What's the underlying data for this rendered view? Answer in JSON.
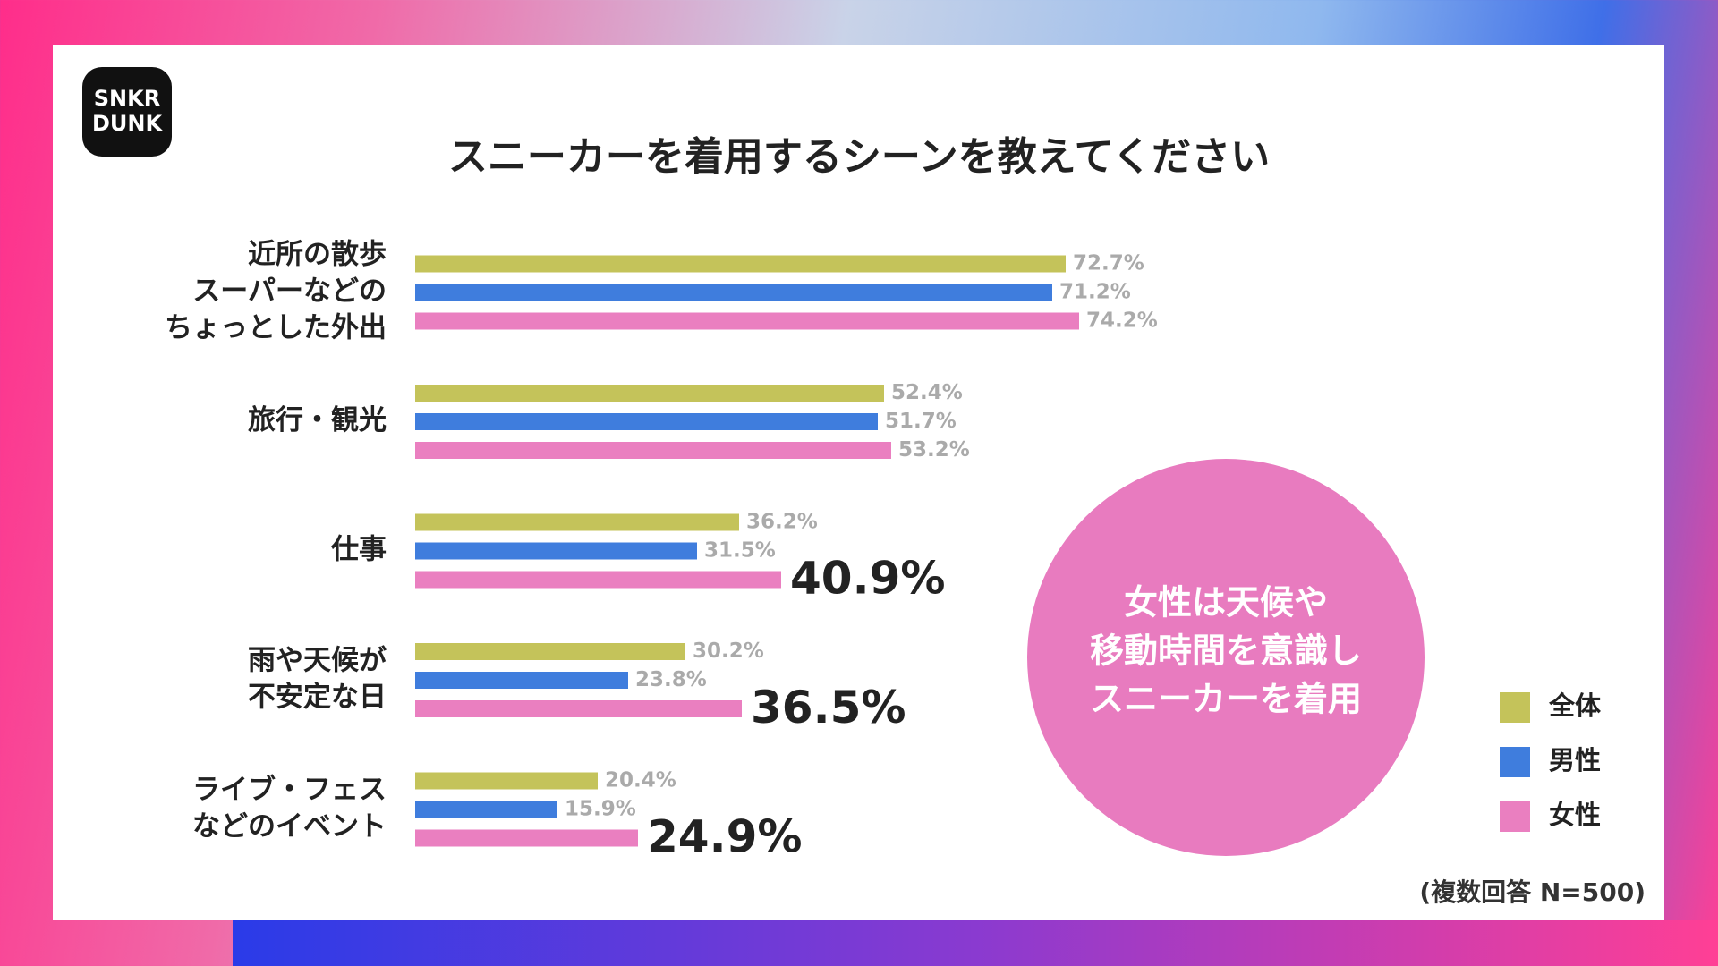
{
  "chart_data": {
    "type": "bar",
    "logo": [
      "SNKR",
      "DUNK"
    ],
    "title": "スニーカーを着用するシーンを教えてください",
    "categories": [
      [
        "近所の散歩",
        "スーパーなどの",
        "ちょっとした外出"
      ],
      [
        "旅行・観光"
      ],
      [
        "仕事"
      ],
      [
        "雨や天候が",
        "不安定な日"
      ],
      [
        "ライブ・フェス",
        "などのイベント"
      ]
    ],
    "series": [
      {
        "name": "全体",
        "color": "#c4c35a",
        "values": [
          72.7,
          52.4,
          36.2,
          30.2,
          20.4
        ],
        "value_labels": [
          "72.7%",
          "52.4%",
          "36.2%",
          "30.2%",
          "20.4%"
        ],
        "emphasis": [
          false,
          false,
          false,
          false,
          false
        ]
      },
      {
        "name": "男性",
        "color": "#3f7ddd",
        "values": [
          71.2,
          51.7,
          31.5,
          23.8,
          15.9
        ],
        "value_labels": [
          "71.2%",
          "51.7%",
          "31.5%",
          "23.8%",
          "15.9%"
        ],
        "emphasis": [
          false,
          false,
          false,
          false,
          false
        ]
      },
      {
        "name": "女性",
        "color": "#ea7fc0",
        "values": [
          74.2,
          53.2,
          40.9,
          36.5,
          24.9
        ],
        "value_labels": [
          "74.2%",
          "53.2%",
          "40.9%",
          "36.5%",
          "24.9%"
        ],
        "emphasis": [
          false,
          false,
          true,
          true,
          true
        ]
      }
    ],
    "callout": [
      "女性は天候や",
      "移動時間を意識し",
      "スニーカーを着用"
    ],
    "note": "(複数回答 N=500)"
  }
}
